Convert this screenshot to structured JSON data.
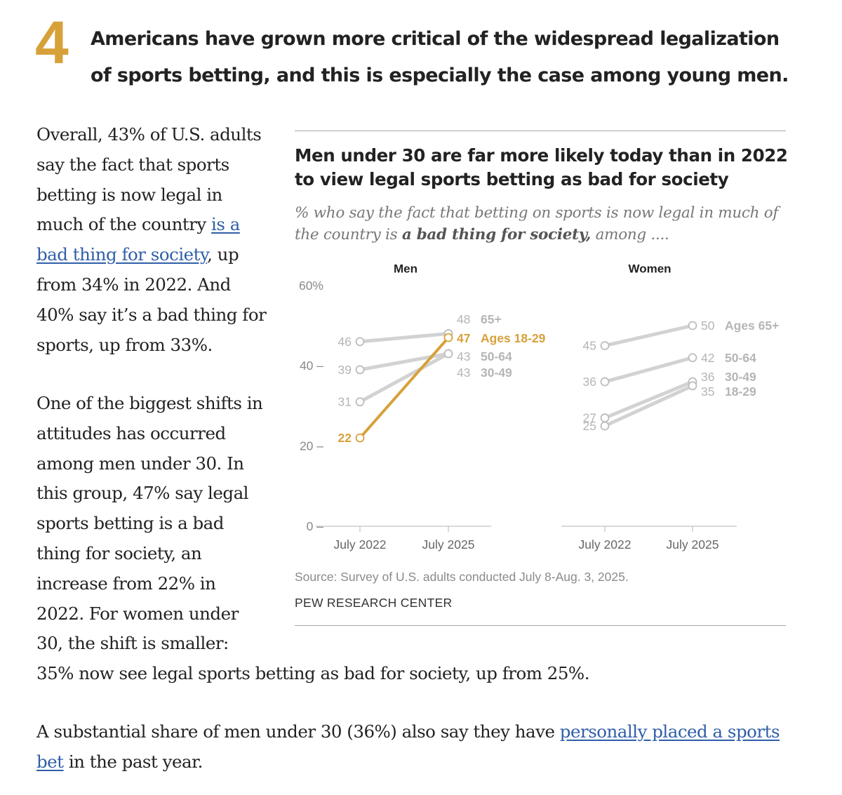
{
  "header": {
    "number": "4",
    "headline": "Americans have grown more critical of the widespread legalization of sports betting, and this is especially the case among young men."
  },
  "body": {
    "para1_before": "Overall, 43% of U.S. adults say the fact that sports betting is now legal in much of the country ",
    "para1_link": "is a bad thing for society",
    "para1_after": ", up from 34% in 2022. And 40% say it’s a bad thing for sports, up from 33%.",
    "para2_top": "One of the biggest shifts in attitudes has occurred among men under 30. In this group, 47% say legal sports betting is a bad thing for society, an increase from 22% in 2022. For women under 30, the shift is smaller:",
    "para2_tail": "35% now see legal sports betting as bad for society, up from 25%.",
    "para3_before": "A substantial share of men under 30 (36%) also say they have ",
    "para3_link": "personally placed a sports bet",
    "para3_after": " in the past year."
  },
  "colors": {
    "accent": "#d7a13a",
    "muted_line": "#d2d2d2",
    "muted_label": "#b5b5b5",
    "link": "#2f5ea8"
  },
  "chart_data": {
    "type": "line",
    "title": "Men under 30 are far more likely today than in 2022 to view legal sports betting as bad for society",
    "subtitle_before": "% who say the fact that betting on sports is now legal in much of the country is ",
    "subtitle_bold": "a bad thing for society,",
    "subtitle_after": " among ....",
    "y_ticks": [
      {
        "value": 60,
        "label": "60%"
      },
      {
        "value": 40,
        "label": "40 –"
      },
      {
        "value": 20,
        "label": "20 –"
      },
      {
        "value": 0,
        "label": "0 –"
      }
    ],
    "ylim": [
      0,
      60
    ],
    "panels": [
      {
        "name": "men",
        "title": "Men",
        "x": [
          "July 2022",
          "July 2025"
        ],
        "series": [
          {
            "name": "Ages 65+",
            "label": "65+",
            "values": [
              46,
              48
            ],
            "highlight": false
          },
          {
            "name": "Ages 50-64",
            "label": "50-64",
            "values": [
              39,
              43
            ],
            "highlight": false
          },
          {
            "name": "Ages 30-49",
            "label": "30-49",
            "values": [
              31,
              43
            ],
            "highlight": false
          },
          {
            "name": "Ages 18-29",
            "label": "Ages 18-29",
            "values": [
              22,
              47
            ],
            "highlight": true
          }
        ]
      },
      {
        "name": "women",
        "title": "Women",
        "x": [
          "July 2022",
          "July 2025"
        ],
        "series": [
          {
            "name": "Ages 65+",
            "label": "Ages 65+",
            "values": [
              45,
              50
            ],
            "highlight": false
          },
          {
            "name": "Ages 50-64",
            "label": "50-64",
            "values": [
              36,
              42
            ],
            "highlight": false
          },
          {
            "name": "Ages 30-49",
            "label": "30-49",
            "values": [
              27,
              36
            ],
            "highlight": false
          },
          {
            "name": "Ages 18-29",
            "label": "18-29",
            "values": [
              25,
              35
            ],
            "highlight": false
          }
        ]
      }
    ],
    "source": "Source: Survey of U.S. adults conducted July 8-Aug. 3, 2025.",
    "credit": "PEW RESEARCH CENTER"
  }
}
